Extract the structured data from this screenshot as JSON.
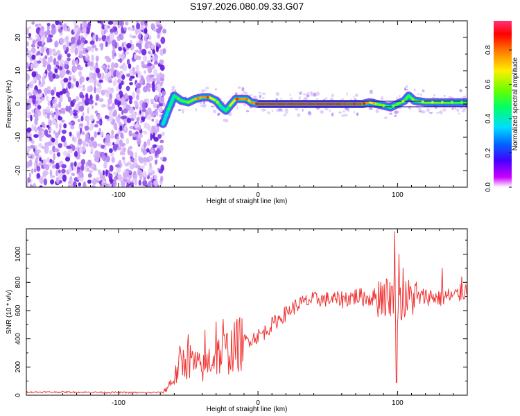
{
  "title": "S197.2026.080.09.33.G07",
  "colorbar": {
    "label": "Normalized spectral amplitude",
    "ticks": [
      "0.0",
      "0.2",
      "0.4",
      "0.6",
      "0.8"
    ],
    "tick_values": [
      0.0,
      0.2,
      0.4,
      0.6,
      0.8
    ],
    "range": [
      0.0,
      0.97
    ]
  },
  "chart_data": [
    {
      "type": "heatmap",
      "xlabel": "Height of straight line (km)",
      "ylabel": "Frequency (Hz)",
      "xlim": [
        -166,
        150
      ],
      "ylim": [
        -25,
        25
      ],
      "xticks": [
        -100,
        0,
        100
      ],
      "xtick_labels": [
        "-100",
        "0",
        "100"
      ],
      "yticks": [
        -20,
        -10,
        0,
        10,
        20
      ],
      "ytick_labels": [
        "-20",
        "-10",
        "0",
        "10",
        "20"
      ],
      "noise_region_x": [
        -166,
        -68
      ],
      "ridge": {
        "x": [
          -68,
          -64,
          -60,
          -55,
          -50,
          -45,
          -40,
          -35,
          -30,
          -26,
          -23,
          -20,
          -16,
          -12,
          -8,
          -5,
          0,
          20,
          40,
          60,
          75,
          80,
          85,
          90,
          95,
          100,
          105,
          108,
          112,
          120,
          130,
          140,
          150
        ],
        "freq": [
          -6,
          -1.5,
          2.5,
          1,
          0.5,
          1.5,
          2,
          2,
          1,
          -1,
          -2,
          -0.5,
          1.5,
          1.5,
          1.5,
          0.5,
          0,
          0,
          0,
          0,
          0,
          0.5,
          0,
          -0.5,
          -1,
          0,
          1,
          2.5,
          1,
          0.5,
          0.5,
          0.5,
          0.5
        ],
        "amp": [
          0.3,
          0.45,
          0.4,
          0.55,
          0.5,
          0.7,
          0.8,
          0.8,
          0.6,
          0.45,
          0.35,
          0.6,
          0.8,
          0.82,
          0.75,
          0.7,
          0.9,
          0.9,
          0.9,
          0.9,
          0.85,
          0.75,
          0.65,
          0.55,
          0.5,
          0.55,
          0.6,
          0.5,
          0.55,
          0.6,
          0.6,
          0.55,
          0.5
        ]
      }
    },
    {
      "type": "line",
      "xlabel": "Height of straight line (km)",
      "ylabel": "SNR (10 * v/v)",
      "xlim": [
        -166,
        150
      ],
      "ylim": [
        0,
        1180
      ],
      "xticks": [
        -100,
        0,
        100
      ],
      "xtick_labels": [
        "-100",
        "0",
        "100"
      ],
      "yticks": [
        0,
        200,
        400,
        600,
        800,
        1000
      ],
      "ytick_labels": [
        "0",
        "200",
        "400",
        "600",
        "800",
        "1000"
      ],
      "color": "#f03232",
      "series": [
        {
          "name": "SNR",
          "x": [
            -166,
            -140,
            -110,
            -80,
            -68,
            -60,
            -55,
            -50,
            -45,
            -40,
            -35,
            -30,
            -25,
            -20,
            -15,
            -10,
            -5,
            0,
            5,
            10,
            15,
            20,
            25,
            30,
            40,
            50,
            60,
            70,
            80,
            85,
            90,
            95,
            97,
            99,
            100,
            103,
            107,
            110,
            115,
            120,
            125,
            130,
            135,
            140,
            145,
            150
          ],
          "values": [
            22,
            22,
            20,
            18,
            20,
            120,
            230,
            250,
            220,
            180,
            250,
            280,
            300,
            320,
            350,
            380,
            400,
            420,
            450,
            500,
            540,
            580,
            620,
            650,
            680,
            680,
            680,
            700,
            690,
            700,
            700,
            700,
            700,
            680,
            650,
            660,
            680,
            700,
            690,
            700,
            700,
            690,
            700,
            700,
            720,
            750
          ],
          "spikes": [
            {
              "x": -56,
              "value": 350
            },
            {
              "x": -50,
              "value": 430
            },
            {
              "x": -38,
              "value": 460
            },
            {
              "x": -30,
              "value": 520
            },
            {
              "x": -25,
              "value": 540
            },
            {
              "x": -15,
              "value": 540
            },
            {
              "x": 98,
              "value": 1160
            },
            {
              "x": 99.3,
              "value": 90
            },
            {
              "x": 101,
              "value": 1000
            },
            {
              "x": 88,
              "value": 800
            },
            {
              "x": 104,
              "value": 900
            },
            {
              "x": 132,
              "value": 900
            },
            {
              "x": 146,
              "value": 840
            }
          ]
        }
      ]
    }
  ]
}
